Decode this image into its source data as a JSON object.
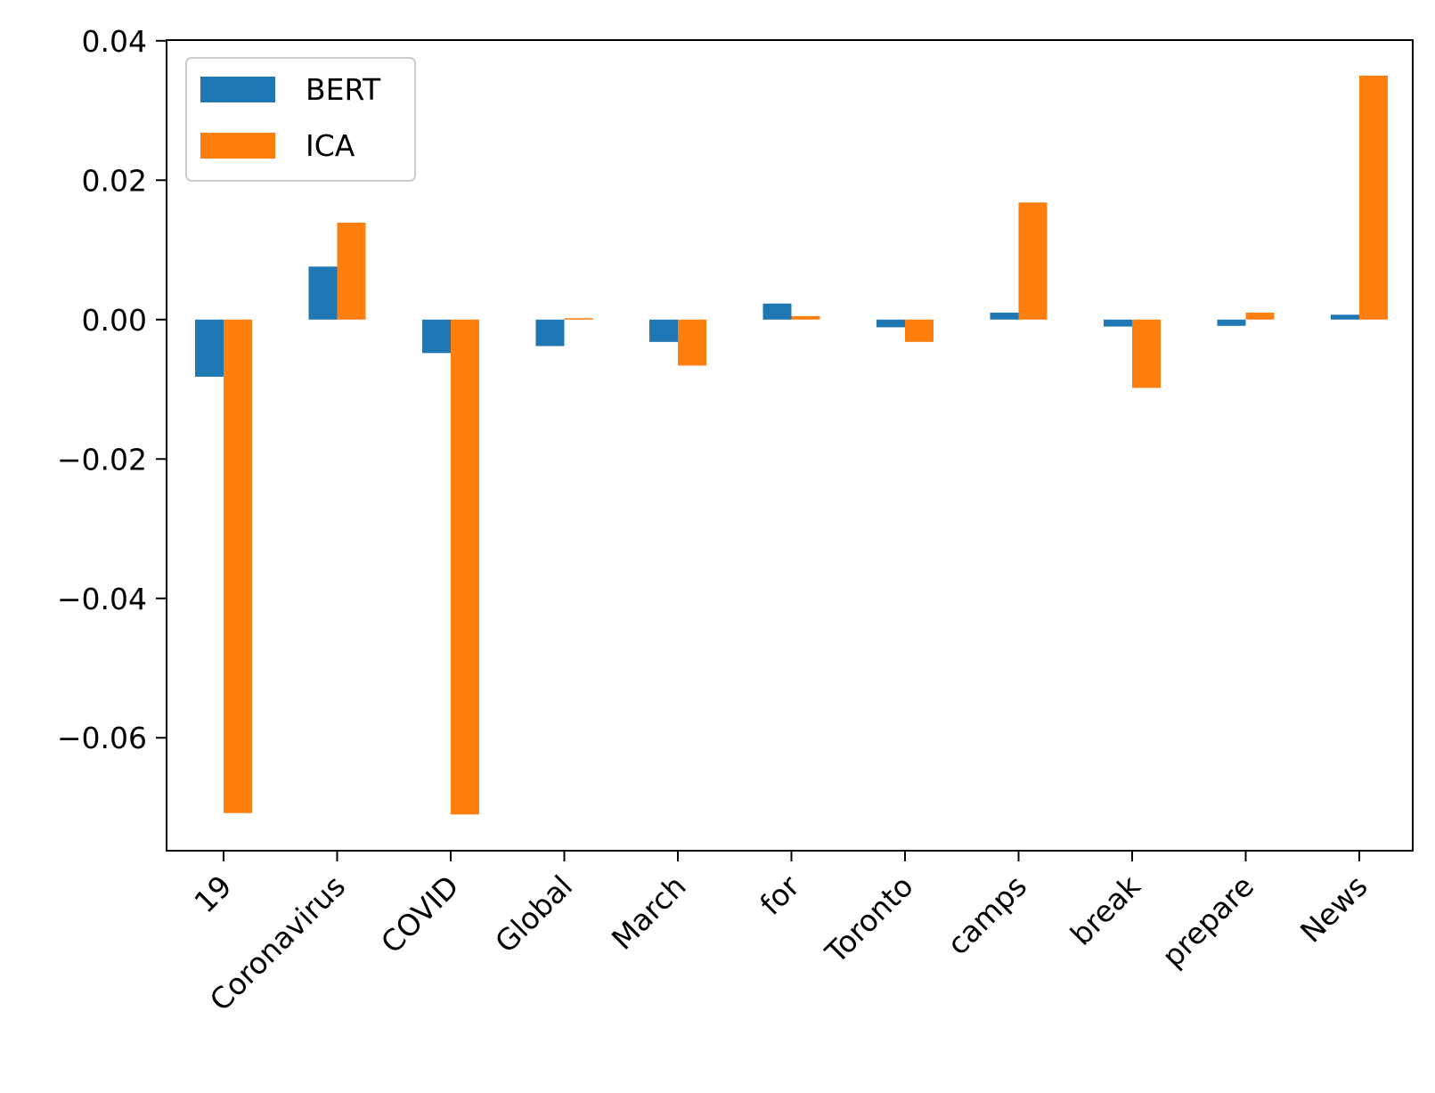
{
  "chart_data": {
    "type": "bar",
    "title": "",
    "xlabel": "",
    "ylabel": "",
    "categories": [
      "19",
      "Coronavirus",
      "COVID",
      "Global",
      "March",
      "for",
      "Toronto",
      "camps",
      "break",
      "prepare",
      "News"
    ],
    "series": [
      {
        "name": "BERT",
        "color": "#1f77b4",
        "values": [
          -0.0082,
          0.0076,
          -0.0048,
          -0.0038,
          -0.0032,
          0.0023,
          -0.0011,
          0.001,
          -0.001,
          -0.0009,
          0.0007
        ]
      },
      {
        "name": "ICA",
        "color": "#ff7f0e",
        "values": [
          -0.0708,
          0.0139,
          -0.071,
          0.0002,
          -0.0066,
          0.0005,
          -0.0032,
          0.0168,
          -0.0098,
          0.001,
          0.035
        ]
      }
    ],
    "ylim": [
      -0.0762,
      0.0401
    ],
    "yticks": [
      -0.06,
      -0.04,
      -0.02,
      0.0,
      0.02,
      0.04
    ],
    "ytick_labels": [
      "−0.06",
      "−0.04",
      "−0.02",
      "0.00",
      "0.02",
      "0.04"
    ],
    "grid": false,
    "legend_position": "upper-left"
  }
}
